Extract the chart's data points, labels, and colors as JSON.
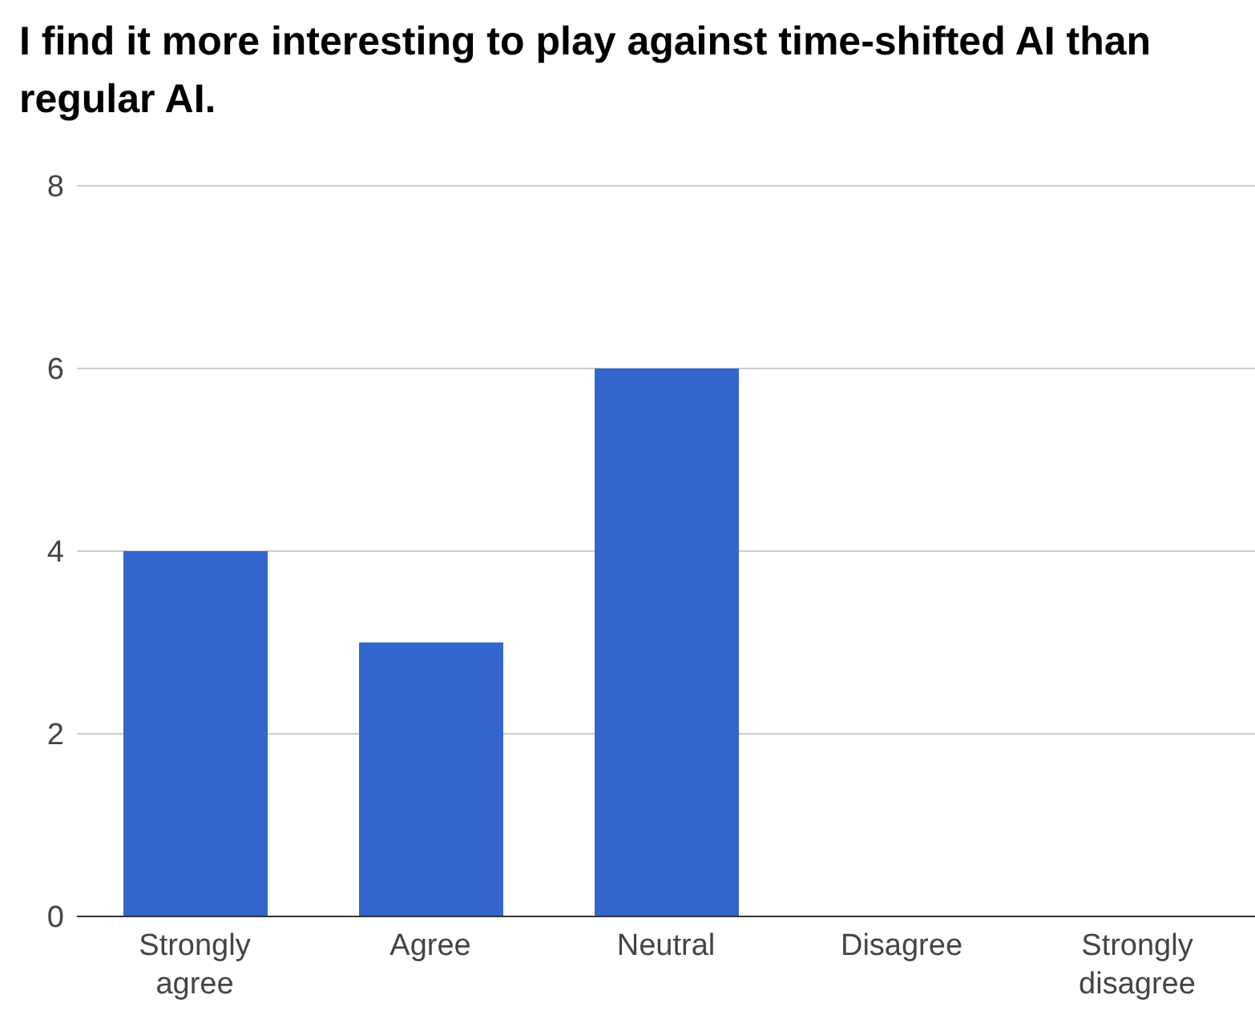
{
  "chart_data": {
    "type": "bar",
    "title": "I find it more interesting to play against time-shifted AI than regular AI.",
    "categories": [
      "Strongly agree",
      "Agree",
      "Neutral",
      "Disagree",
      "Strongly disagree"
    ],
    "values": [
      4,
      3,
      6,
      0,
      0
    ],
    "color": "#3366cc",
    "ylim": [
      0,
      8
    ],
    "yticks": [
      0,
      2,
      4,
      6,
      8
    ],
    "grid": "y",
    "legend": false
  }
}
